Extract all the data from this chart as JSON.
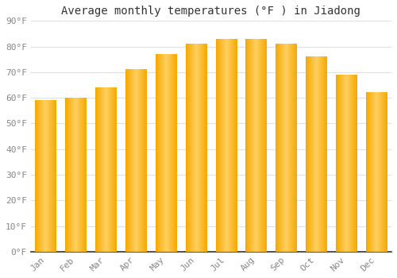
{
  "title": "Average monthly temperatures (°F ) in Jiadong",
  "months": [
    "Jan",
    "Feb",
    "Mar",
    "Apr",
    "May",
    "Jun",
    "Jul",
    "Aug",
    "Sep",
    "Oct",
    "Nov",
    "Dec"
  ],
  "values": [
    59,
    60,
    64,
    71,
    77,
    81,
    83,
    83,
    81,
    76,
    69,
    62
  ],
  "bar_color_center": "#FFD060",
  "bar_color_edge": "#F5A800",
  "ylim": [
    0,
    90
  ],
  "yticks": [
    0,
    10,
    20,
    30,
    40,
    50,
    60,
    70,
    80,
    90
  ],
  "ytick_labels": [
    "0°F",
    "10°F",
    "20°F",
    "30°F",
    "40°F",
    "50°F",
    "60°F",
    "70°F",
    "80°F",
    "90°F"
  ],
  "background_color": "#ffffff",
  "grid_color": "#e0e0e0",
  "title_fontsize": 10,
  "tick_fontsize": 8,
  "tick_color": "#888888",
  "axis_color": "#333333",
  "bar_width": 0.7
}
